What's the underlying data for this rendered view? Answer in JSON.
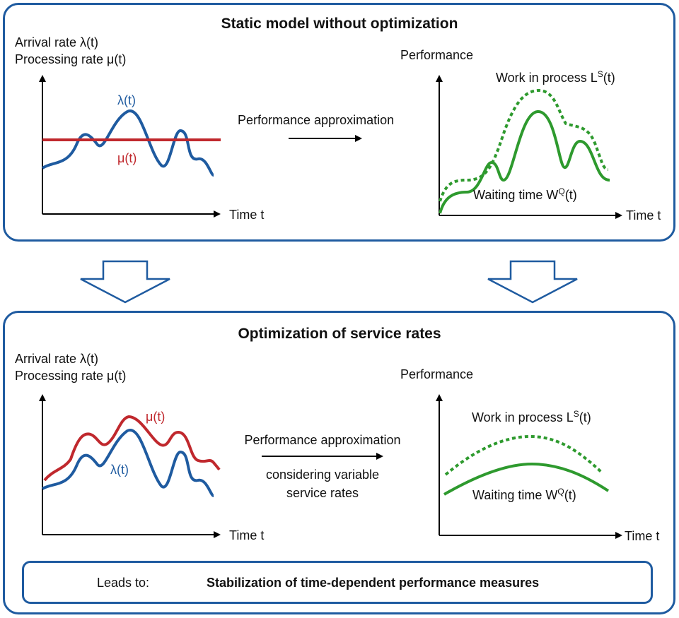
{
  "top_panel": {
    "title": "Static model without optimization",
    "left_axis": {
      "y_label_1": "Arrival rate λ(t)",
      "y_label_2": "Processing rate μ(t)",
      "x_label": "Time t"
    },
    "lambda_label": "λ(t)",
    "mu_label": "μ(t)",
    "middle_label": "Performance approximation",
    "right_axis": {
      "y_label": "Performance",
      "x_label": "Time t"
    },
    "wip_label": {
      "base": "Work in process L",
      "sup": "S",
      "tail": "(t)"
    },
    "wait_label": {
      "base": "Waiting time W",
      "sup": "Q",
      "tail": "(t)"
    }
  },
  "bottom_panel": {
    "title": "Optimization of service rates",
    "left_axis": {
      "y_label_1": "Arrival rate λ(t)",
      "y_label_2": "Processing rate μ(t)",
      "x_label": "Time t"
    },
    "mu_label": "μ(t)",
    "lambda_label": "λ(t)",
    "middle_label_1": "Performance approximation",
    "middle_label_2": "considering variable",
    "middle_label_3": "service rates",
    "right_axis": {
      "y_label": "Performance",
      "x_label": "Time t"
    },
    "wip_label": {
      "base": "Work in process L",
      "sup": "S",
      "tail": "(t)"
    },
    "wait_label": {
      "base": "Waiting time W",
      "sup": "Q",
      "tail": "(t)"
    }
  },
  "leads_to": {
    "prefix": "Leads to:",
    "text": "Stabilization of time-dependent performance measures"
  },
  "colors": {
    "frame": "#1f5ba0",
    "lambda": "#1f5ba0",
    "mu": "#c0282d",
    "performance": "#2e9a2e"
  }
}
